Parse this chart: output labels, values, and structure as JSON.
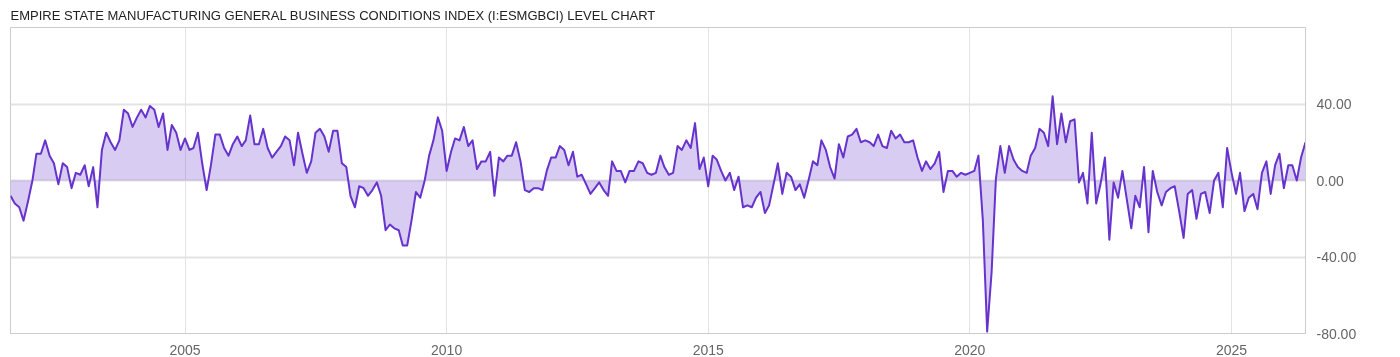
{
  "chart_data": {
    "type": "area",
    "title": "EMPIRE STATE MANUFACTURING GENERAL BUSINESS CONDITIONS INDEX (I:ESMGBCI) LEVEL CHART",
    "x": [
      "2001-09",
      "2001-10",
      "2001-11",
      "2001-12",
      "2002-01",
      "2002-02",
      "2002-03",
      "2002-04",
      "2002-05",
      "2002-06",
      "2002-07",
      "2002-08",
      "2002-09",
      "2002-10",
      "2002-11",
      "2002-12",
      "2003-01",
      "2003-02",
      "2003-03",
      "2003-04",
      "2003-05",
      "2003-06",
      "2003-07",
      "2003-08",
      "2003-09",
      "2003-10",
      "2003-11",
      "2003-12",
      "2004-01",
      "2004-02",
      "2004-03",
      "2004-04",
      "2004-05",
      "2004-06",
      "2004-07",
      "2004-08",
      "2004-09",
      "2004-10",
      "2004-11",
      "2004-12",
      "2005-01",
      "2005-02",
      "2005-03",
      "2005-04",
      "2005-05",
      "2005-06",
      "2005-07",
      "2005-08",
      "2005-09",
      "2005-10",
      "2005-11",
      "2005-12",
      "2006-01",
      "2006-02",
      "2006-03",
      "2006-04",
      "2006-05",
      "2006-06",
      "2006-07",
      "2006-08",
      "2006-09",
      "2006-10",
      "2006-11",
      "2006-12",
      "2007-01",
      "2007-02",
      "2007-03",
      "2007-04",
      "2007-05",
      "2007-06",
      "2007-07",
      "2007-08",
      "2007-09",
      "2007-10",
      "2007-11",
      "2007-12",
      "2008-01",
      "2008-02",
      "2008-03",
      "2008-04",
      "2008-05",
      "2008-06",
      "2008-07",
      "2008-08",
      "2008-09",
      "2008-10",
      "2008-11",
      "2008-12",
      "2009-01",
      "2009-02",
      "2009-03",
      "2009-04",
      "2009-05",
      "2009-06",
      "2009-07",
      "2009-08",
      "2009-09",
      "2009-10",
      "2009-11",
      "2009-12",
      "2010-01",
      "2010-02",
      "2010-03",
      "2010-04",
      "2010-05",
      "2010-06",
      "2010-07",
      "2010-08",
      "2010-09",
      "2010-10",
      "2010-11",
      "2010-12",
      "2011-01",
      "2011-02",
      "2011-03",
      "2011-04",
      "2011-05",
      "2011-06",
      "2011-07",
      "2011-08",
      "2011-09",
      "2011-10",
      "2011-11",
      "2011-12",
      "2012-01",
      "2012-02",
      "2012-03",
      "2012-04",
      "2012-05",
      "2012-06",
      "2012-07",
      "2012-08",
      "2012-09",
      "2012-10",
      "2012-11",
      "2012-12",
      "2013-01",
      "2013-02",
      "2013-03",
      "2013-04",
      "2013-05",
      "2013-06",
      "2013-07",
      "2013-08",
      "2013-09",
      "2013-10",
      "2013-11",
      "2013-12",
      "2014-01",
      "2014-02",
      "2014-03",
      "2014-04",
      "2014-05",
      "2014-06",
      "2014-07",
      "2014-08",
      "2014-09",
      "2014-10",
      "2014-11",
      "2014-12",
      "2015-01",
      "2015-02",
      "2015-03",
      "2015-04",
      "2015-05",
      "2015-06",
      "2015-07",
      "2015-08",
      "2015-09",
      "2015-10",
      "2015-11",
      "2015-12",
      "2016-01",
      "2016-02",
      "2016-03",
      "2016-04",
      "2016-05",
      "2016-06",
      "2016-07",
      "2016-08",
      "2016-09",
      "2016-10",
      "2016-11",
      "2016-12",
      "2017-01",
      "2017-02",
      "2017-03",
      "2017-04",
      "2017-05",
      "2017-06",
      "2017-07",
      "2017-08",
      "2017-09",
      "2017-10",
      "2017-11",
      "2017-12",
      "2018-01",
      "2018-02",
      "2018-03",
      "2018-04",
      "2018-05",
      "2018-06",
      "2018-07",
      "2018-08",
      "2018-09",
      "2018-10",
      "2018-11",
      "2018-12",
      "2019-01",
      "2019-02",
      "2019-03",
      "2019-04",
      "2019-05",
      "2019-06",
      "2019-07",
      "2019-08",
      "2019-09",
      "2019-10",
      "2019-11",
      "2019-12",
      "2020-01",
      "2020-02",
      "2020-03",
      "2020-04",
      "2020-05",
      "2020-06",
      "2020-07",
      "2020-08",
      "2020-09",
      "2020-10",
      "2020-11",
      "2020-12",
      "2021-01",
      "2021-02",
      "2021-03",
      "2021-04",
      "2021-05",
      "2021-06",
      "2021-07",
      "2021-08",
      "2021-09",
      "2021-10",
      "2021-11",
      "2021-12",
      "2022-01",
      "2022-02",
      "2022-03",
      "2022-04",
      "2022-05",
      "2022-06",
      "2022-07",
      "2022-08",
      "2022-09",
      "2022-10",
      "2022-11",
      "2022-12",
      "2023-01",
      "2023-02",
      "2023-03",
      "2023-04",
      "2023-05",
      "2023-06",
      "2023-07",
      "2023-08",
      "2023-09",
      "2023-10",
      "2023-11",
      "2023-12",
      "2024-01",
      "2024-02",
      "2024-03",
      "2024-04",
      "2024-05",
      "2024-06",
      "2024-07",
      "2024-08",
      "2024-09",
      "2024-10",
      "2024-11",
      "2024-12",
      "2025-01",
      "2025-02",
      "2025-03",
      "2025-04",
      "2025-05",
      "2025-06",
      "2025-07",
      "2025-08",
      "2025-09",
      "2025-10",
      "2025-11",
      "2025-12",
      "2026-01",
      "2026-02",
      "2026-03",
      "2026-04",
      "2026-05",
      "2026-06"
    ],
    "series": [
      {
        "color": "#6633cc",
        "values": [
          -8,
          -12,
          -14,
          -21,
          -11,
          0,
          14,
          14,
          21,
          13,
          9,
          -2,
          9,
          7,
          -4,
          4,
          3,
          8,
          -3,
          7,
          -14,
          16,
          25,
          20,
          16,
          21,
          37,
          35,
          28,
          33,
          37,
          33,
          39,
          37,
          28,
          35,
          16,
          29,
          25,
          16,
          22,
          16,
          17,
          25,
          9,
          -5,
          8,
          24,
          24,
          17,
          13,
          19,
          23,
          18,
          21,
          34,
          19,
          19,
          27,
          17,
          12,
          15,
          18,
          23,
          21,
          8,
          25,
          14,
          4,
          10,
          25,
          27,
          23,
          15,
          26,
          26,
          9,
          7,
          -8,
          -14,
          -3,
          -4,
          -8,
          -5,
          -1,
          -8,
          -26,
          -23,
          -25,
          -26,
          -34,
          -34,
          -21,
          -6,
          -9,
          0,
          13,
          21,
          33,
          26,
          5,
          15,
          22,
          21,
          28,
          18,
          21,
          6,
          10,
          10,
          15,
          -8,
          12,
          10,
          13,
          13,
          20,
          10,
          -5,
          -6,
          -4,
          -4,
          -5,
          5,
          12,
          12,
          18,
          16,
          8,
          15,
          2,
          3,
          -2,
          -7,
          -4,
          -1,
          -5,
          -8,
          10,
          5,
          5,
          -1,
          5,
          5,
          10,
          9,
          4,
          3,
          4,
          13,
          7,
          3,
          4,
          18,
          16,
          21,
          17,
          30,
          6,
          12,
          -3,
          13,
          11,
          5,
          0,
          4,
          -5,
          2,
          -14,
          -13,
          -14,
          -9,
          -6,
          -17,
          -13,
          -2,
          9,
          -7,
          4,
          2,
          -5,
          -2,
          -9,
          0,
          10,
          8,
          21,
          16,
          7,
          1,
          19,
          12,
          23,
          24,
          27,
          20,
          21,
          20,
          18,
          24,
          18,
          17,
          26,
          22,
          24,
          20,
          20,
          21,
          12,
          5,
          10,
          6,
          9,
          15,
          -6,
          5,
          5,
          2,
          4,
          3,
          4,
          5,
          13,
          -21,
          -79,
          -48,
          1,
          18,
          4,
          18,
          11,
          7,
          5,
          4,
          13,
          17,
          27,
          25,
          18,
          44,
          19,
          35,
          20,
          31,
          32,
          -1,
          4,
          -12,
          25,
          -12,
          -2,
          12,
          -31,
          -1,
          -9,
          5,
          -10,
          -25,
          -8,
          -14,
          7,
          -27,
          5,
          -6,
          -13,
          -6,
          -4,
          -3,
          -16,
          -30,
          -7,
          -5,
          -20,
          -7,
          -6,
          -17,
          0,
          4,
          -14,
          17,
          4,
          -7,
          4,
          -16,
          -9,
          -7,
          -15,
          4,
          10,
          -7,
          8,
          14,
          -4,
          8,
          8,
          0,
          12,
          20
        ]
      }
    ],
    "xlim": [
      "2001-09",
      "2026-06"
    ],
    "xticks": [
      "2005",
      "2010",
      "2015",
      "2020",
      "2025"
    ],
    "ylim": [
      -80,
      80
    ],
    "yticks": [
      {
        "value": 40,
        "label": "40.00"
      },
      {
        "value": 0,
        "label": "0.00"
      },
      {
        "value": -40,
        "label": "-40.00"
      },
      {
        "value": -80,
        "label": "-80.00"
      }
    ],
    "grid": true,
    "marker": "none",
    "line_style": "solid"
  }
}
